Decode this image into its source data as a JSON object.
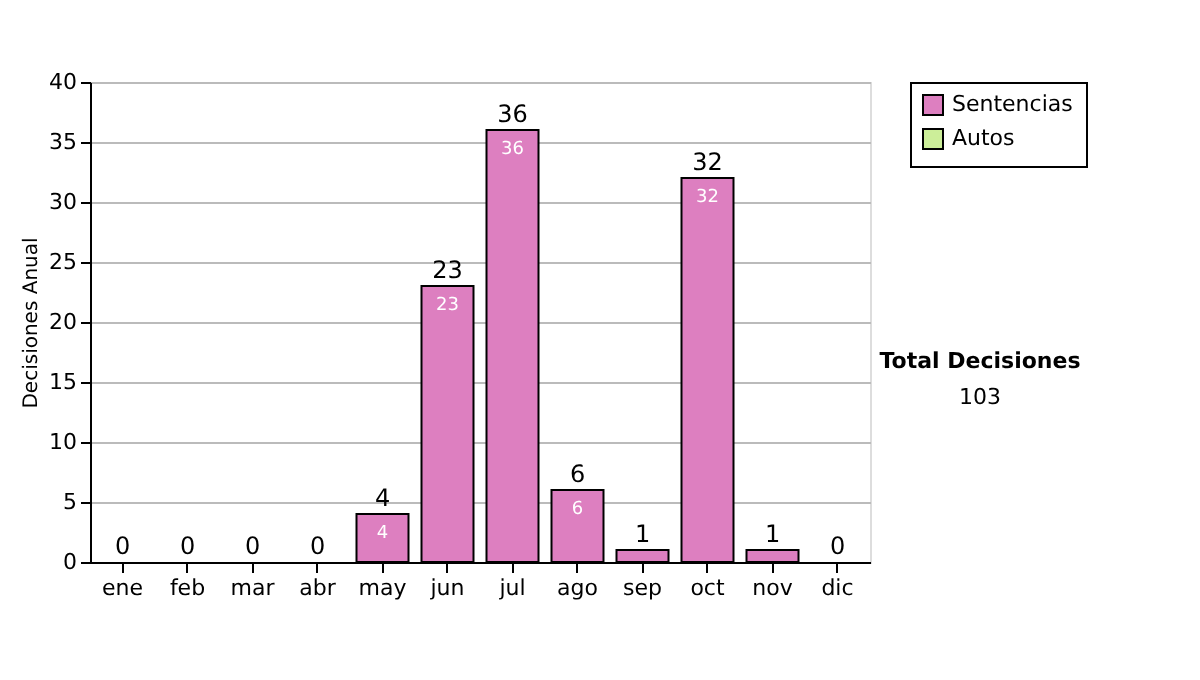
{
  "chart_data": {
    "type": "bar",
    "ylabel": "Decisiones Anual",
    "categories": [
      "ene",
      "feb",
      "mar",
      "abr",
      "may",
      "jun",
      "jul",
      "ago",
      "sep",
      "oct",
      "nov",
      "dic"
    ],
    "series": [
      {
        "name": "Sentencias",
        "color": "#dd7fc0",
        "values": [
          0,
          0,
          0,
          0,
          4,
          23,
          36,
          6,
          1,
          32,
          1,
          0
        ],
        "value_labels": [
          null,
          null,
          null,
          null,
          "4",
          "23",
          "36",
          "6",
          null,
          "32",
          null,
          null
        ]
      },
      {
        "name": "Autos",
        "color": "#ccee99",
        "values": [
          0,
          0,
          0,
          0,
          0,
          0,
          0,
          0,
          0,
          0,
          0,
          0
        ]
      }
    ],
    "stacked": true,
    "totals": [
      "0",
      "0",
      "0",
      "0",
      "4",
      "23",
      "36",
      "6",
      "1",
      "32",
      "1",
      "0"
    ],
    "ylim": [
      0,
      40
    ],
    "yticks": [
      0,
      5,
      10,
      15,
      20,
      25,
      30,
      35,
      40
    ],
    "grid": "y",
    "legend": "right",
    "annotations": [
      "Total Decisiones",
      "103"
    ]
  }
}
